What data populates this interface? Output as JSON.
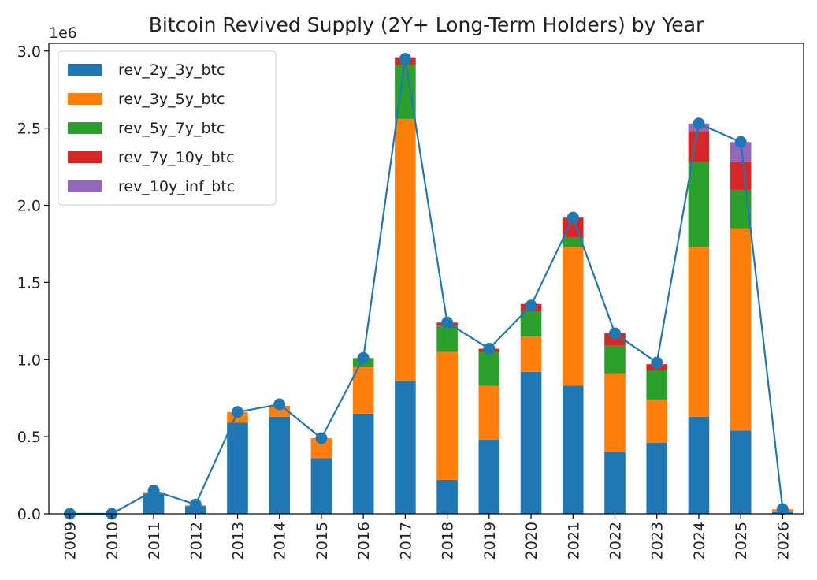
{
  "chart_data": {
    "type": "bar",
    "stacked": true,
    "title": "Bitcoin Revived Supply (2Y+ Long-Term Holders) by Year",
    "xlabel": "",
    "ylabel": "",
    "y_scale_label": "1e6",
    "ylim": [
      0,
      3.05
    ],
    "y_ticks": [
      "0.0",
      "0.5",
      "1.0",
      "1.5",
      "2.0",
      "2.5",
      "3.0"
    ],
    "y_tick_values": [
      0,
      0.5,
      1.0,
      1.5,
      2.0,
      2.5,
      3.0
    ],
    "legend_position": "upper-left",
    "categories": [
      "2009",
      "2010",
      "2011",
      "2012",
      "2013",
      "2014",
      "2015",
      "2016",
      "2017",
      "2018",
      "2019",
      "2020",
      "2021",
      "2022",
      "2023",
      "2024",
      "2025",
      "2026"
    ],
    "series": [
      {
        "name": "rev_2y_3y_btc",
        "color": "#1f77b4",
        "values": [
          0,
          0,
          0.13,
          0.05,
          0.59,
          0.63,
          0.36,
          0.65,
          0.86,
          0.22,
          0.48,
          0.92,
          0.83,
          0.4,
          0.46,
          0.63,
          0.54,
          0.01
        ]
      },
      {
        "name": "rev_3y_5y_btc",
        "color": "#ff7f0e",
        "values": [
          0,
          0,
          0.01,
          0.005,
          0.07,
          0.07,
          0.13,
          0.3,
          1.7,
          0.83,
          0.35,
          0.23,
          0.9,
          0.51,
          0.28,
          1.1,
          1.31,
          0.02
        ]
      },
      {
        "name": "rev_5y_7y_btc",
        "color": "#2ca02c",
        "values": [
          0,
          0,
          0,
          0,
          0,
          0,
          0,
          0.06,
          0.35,
          0.17,
          0.22,
          0.16,
          0.06,
          0.18,
          0.19,
          0.55,
          0.25,
          0
        ]
      },
      {
        "name": "rev_7y_10y_btc",
        "color": "#d62728",
        "values": [
          0,
          0,
          0,
          0,
          0,
          0,
          0,
          0,
          0.05,
          0.02,
          0.02,
          0.05,
          0.13,
          0.08,
          0.04,
          0.2,
          0.18,
          0
        ]
      },
      {
        "name": "rev_10y_inf_btc",
        "color": "#9467bd",
        "values": [
          0,
          0,
          0,
          0,
          0,
          0,
          0,
          0,
          0,
          0,
          0,
          0,
          0,
          0,
          0,
          0.05,
          0.13,
          0
        ]
      }
    ],
    "total_line": {
      "color": "#1f77b4",
      "values": [
        0,
        0,
        0.15,
        0.06,
        0.66,
        0.71,
        0.49,
        1.01,
        2.95,
        1.24,
        1.07,
        1.35,
        1.92,
        1.17,
        0.98,
        2.53,
        2.41,
        0.03
      ]
    }
  }
}
